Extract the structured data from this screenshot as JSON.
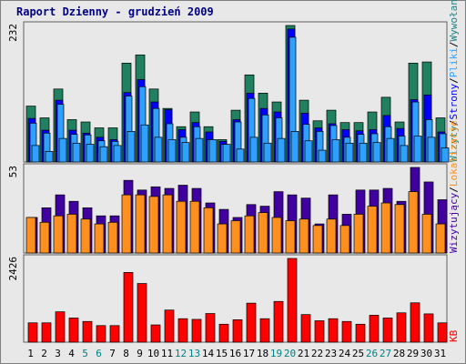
{
  "title": "Raport Dzienny -  grudzień 2009",
  "colors": {
    "bg": "#e8e8e8",
    "panel_border": "#606060",
    "wizyty": "#208060",
    "strony": "#0000ff",
    "pliki": "#30a0ff",
    "wizytujacy": "#4000a0",
    "lokalizacje": "#ff9020",
    "kb": "#ff0000",
    "weekend_label": "#008080",
    "weekday_label": "#000000"
  },
  "chart_data": [
    {
      "type": "bar",
      "name": "hits",
      "ytick_label": "232",
      "ylim": [
        0,
        232
      ],
      "right_label": [
        {
          "text": "Wizyty",
          "color": "#208060"
        },
        {
          "text": "/",
          "color": "#000000"
        },
        {
          "text": "Strony",
          "color": "#0000ff"
        },
        {
          "text": "/",
          "color": "#000000"
        },
        {
          "text": "Pliki",
          "color": "#30a0ff"
        },
        {
          "text": "/",
          "color": "#000000"
        },
        {
          "text": "Wywołania",
          "color": "#208080"
        }
      ],
      "categories": [
        "1",
        "2",
        "3",
        "4",
        "5",
        "6",
        "7",
        "8",
        "9",
        "10",
        "11",
        "12",
        "13",
        "14",
        "15",
        "16",
        "17",
        "18",
        "19",
        "20",
        "21",
        "22",
        "23",
        "24",
        "25",
        "26",
        "27",
        "28",
        "29",
        "30",
        "31"
      ],
      "weekend": [
        5,
        6,
        12,
        13,
        19,
        20,
        26,
        27
      ],
      "series": [
        {
          "values": [
            95,
            75,
            124,
            72,
            68,
            58,
            58,
            168,
            182,
            124,
            91,
            60,
            85,
            60,
            38,
            88,
            148,
            117,
            102,
            232,
            105,
            70,
            88,
            67,
            67,
            85,
            110,
            68,
            168,
            170,
            75
          ]
        },
        {
          "values": [
            74,
            54,
            105,
            54,
            49,
            42,
            38,
            118,
            140,
            102,
            89,
            55,
            67,
            51,
            35,
            72,
            117,
            91,
            85,
            226,
            83,
            58,
            65,
            55,
            53,
            55,
            79,
            57,
            106,
            114,
            51
          ]
        },
        {
          "values": [
            66,
            49,
            98,
            47,
            46,
            36,
            35,
            112,
            128,
            91,
            65,
            42,
            60,
            38,
            30,
            68,
            108,
            80,
            75,
            212,
            64,
            52,
            62,
            42,
            47,
            48,
            60,
            44,
            102,
            72,
            48
          ]
        },
        {
          "values": [
            28,
            18,
            40,
            32,
            30,
            26,
            28,
            52,
            63,
            42,
            38,
            33,
            40,
            38,
            30,
            22,
            42,
            32,
            40,
            52,
            36,
            20,
            38,
            32,
            32,
            33,
            40,
            28,
            44,
            42,
            24
          ]
        }
      ]
    },
    {
      "type": "bar",
      "name": "visitors",
      "ytick_label": "53",
      "ylim": [
        0,
        53
      ],
      "right_label": [
        {
          "text": "Wizytujący",
          "color": "#4000a0"
        },
        {
          "text": "/",
          "color": "#000000"
        },
        {
          "text": "Lokalizacje",
          "color": "#ff9020"
        }
      ],
      "series": [
        {
          "values": [
            22,
            28,
            36,
            32,
            28,
            23,
            23,
            45,
            39,
            41,
            40,
            42,
            40,
            31,
            27,
            22,
            30,
            29,
            38,
            36,
            34,
            18,
            36,
            24,
            39,
            39,
            40,
            32,
            53,
            44,
            33
          ]
        },
        {
          "values": [
            22,
            19,
            23,
            24,
            21,
            18,
            19,
            36,
            36,
            35,
            36,
            32,
            32,
            28,
            18,
            20,
            23,
            25,
            22,
            20,
            21,
            17,
            21,
            17,
            24,
            29,
            31,
            30,
            38,
            24,
            18
          ]
        }
      ]
    },
    {
      "type": "bar",
      "name": "kb",
      "ytick_label": "2426",
      "ylim": [
        0,
        2426
      ],
      "right_label": [
        {
          "text": "KB",
          "color": "#ff0000"
        }
      ],
      "series": [
        {
          "values": [
            560,
            560,
            880,
            700,
            600,
            480,
            480,
            2020,
            1700,
            500,
            930,
            680,
            660,
            830,
            520,
            650,
            1130,
            680,
            1180,
            2426,
            800,
            620,
            680,
            600,
            520,
            780,
            700,
            850,
            1140,
            820,
            560
          ]
        }
      ]
    }
  ]
}
